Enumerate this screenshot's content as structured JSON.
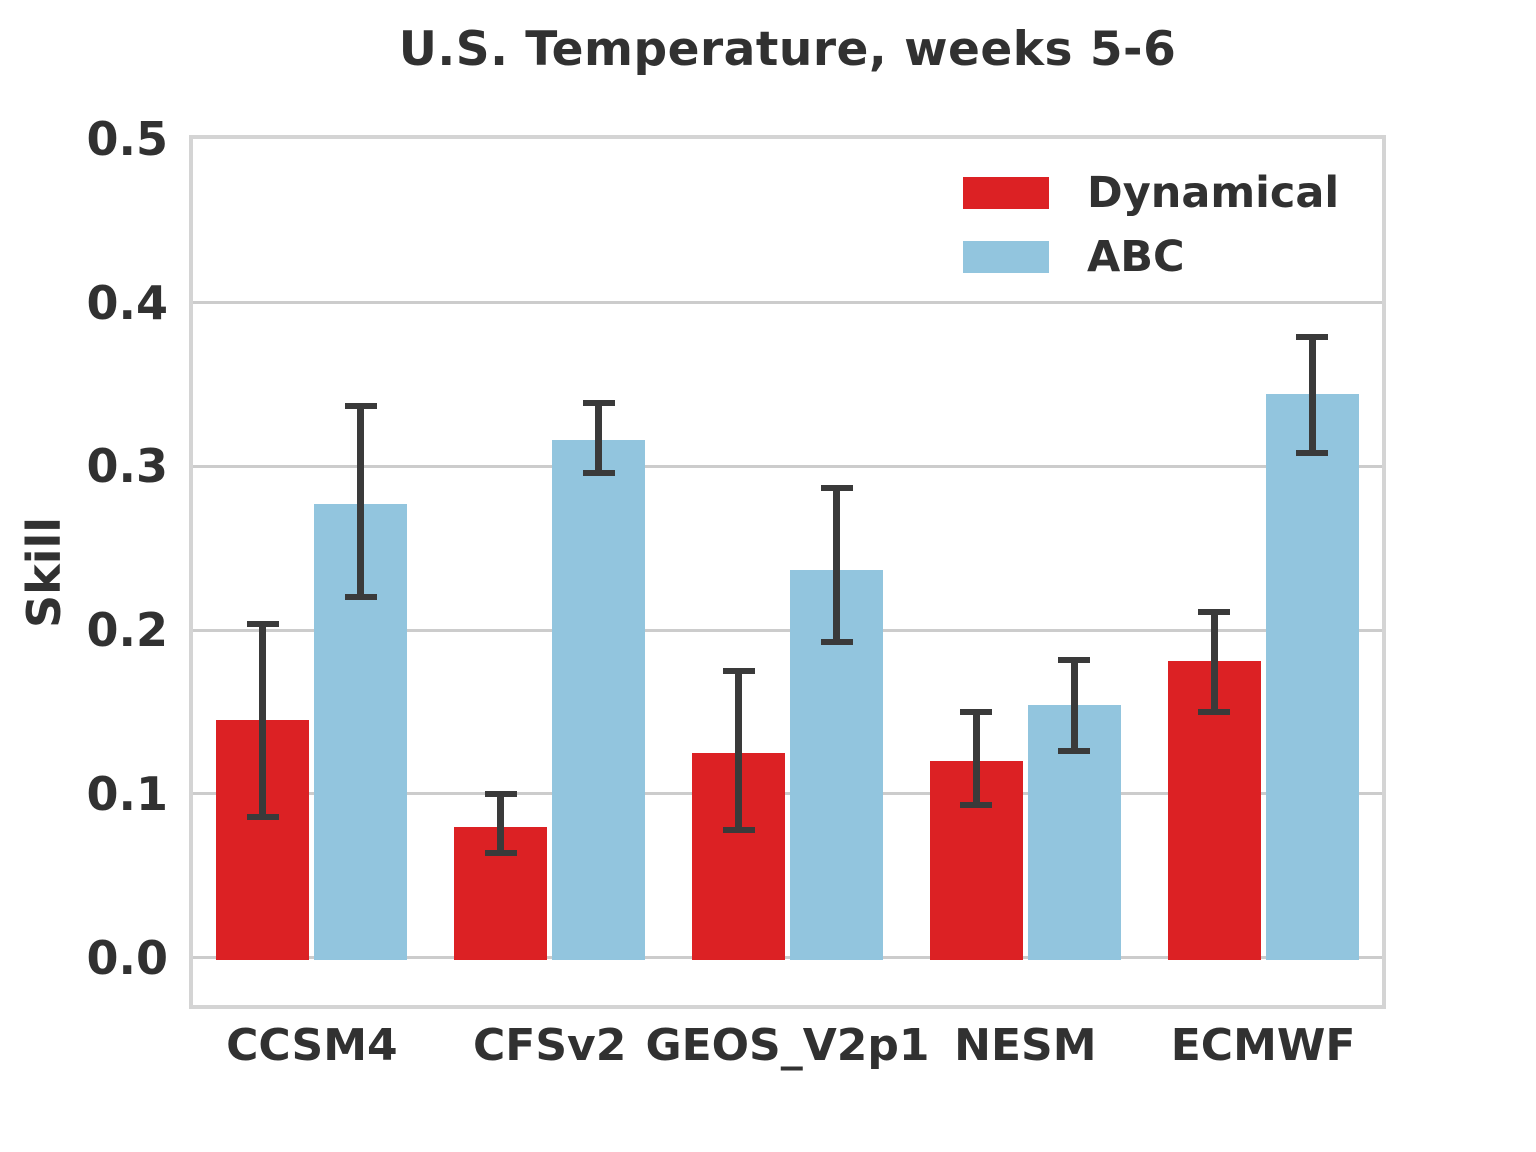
{
  "chart_data": {
    "type": "bar",
    "title": "U.S. Temperature, weeks 5-6",
    "ylabel": "Skill",
    "xlabel": "",
    "categories": [
      "CCSM4",
      "CFSv2",
      "GEOS_V2p1",
      "NESM",
      "ECMWF"
    ],
    "series": [
      {
        "name": "Dynamical",
        "color": "#dc2124",
        "values": [
          0.145,
          0.08,
          0.125,
          0.12,
          0.181
        ],
        "error_low": [
          0.086,
          0.064,
          0.078,
          0.093,
          0.15
        ],
        "error_high": [
          0.204,
          0.1,
          0.175,
          0.15,
          0.211
        ]
      },
      {
        "name": "ABC",
        "color": "#92c5de",
        "values": [
          0.277,
          0.316,
          0.237,
          0.154,
          0.344
        ],
        "error_low": [
          0.22,
          0.296,
          0.193,
          0.126,
          0.308
        ],
        "error_high": [
          0.337,
          0.339,
          0.287,
          0.182,
          0.379
        ]
      }
    ],
    "yticks": [
      0.0,
      0.1,
      0.2,
      0.3,
      0.4,
      0.5
    ],
    "ylim": [
      -0.029,
      0.5
    ],
    "grid": true,
    "legend_position": "upper right",
    "errorbar_color": "#3a3a3a",
    "grid_color": "#cccccc",
    "spine_color": "#d4d4d4",
    "text_color": "#313131"
  }
}
